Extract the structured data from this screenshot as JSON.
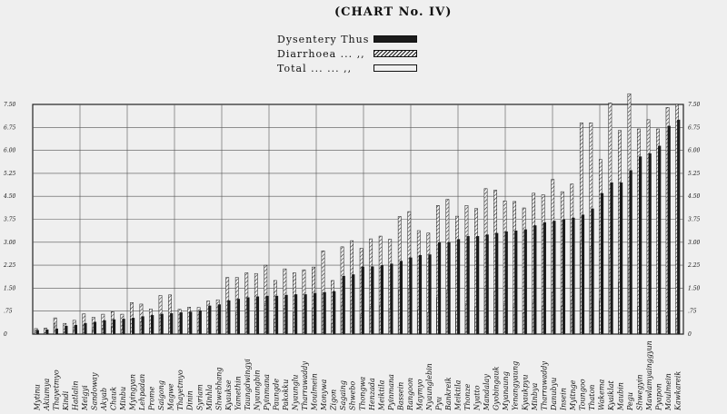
{
  "chart_data": {
    "type": "bar",
    "title": "CHART No. IV",
    "legend": [
      {
        "label": "Dysentery",
        "ditto": "Thus",
        "style": "solid",
        "color": "#1b1b1b"
      },
      {
        "label": "Diarrhoea ...",
        "ditto": ",,",
        "style": "hatched",
        "color": "#1b1b1b"
      },
      {
        "label": "Total ...",
        "ditto": "... ,,",
        "style": "hatched-solid",
        "color": "#1b1b1b"
      }
    ],
    "yticks_left": [
      "7.50",
      "6.75",
      "6.00",
      "5.25",
      "4.50",
      "3.75",
      "3.00",
      "2.25",
      "1.50",
      ".75",
      "0"
    ],
    "yticks_right": [
      "7.50",
      "6.75",
      "6.00",
      "5.25",
      "4.50",
      "3.75",
      "3.00",
      "2.25",
      "1.50",
      ".75",
      "0"
    ],
    "ylim": [
      0,
      7.5
    ],
    "grid": true,
    "categories": [
      "Mytinu",
      "Akiumya",
      "Thayetmyo",
      "Kindi",
      "Hatlalin",
      "Meigyi",
      "Sandoway",
      "Akyab",
      "Chauk",
      "Minbu",
      "Myingyan",
      "Lehpadan",
      "Prome",
      "Saigong",
      "Magwe",
      "Thayetmyo",
      "Dinin",
      "Syriam",
      "Minhla",
      "Shwebhang",
      "Kyaukse",
      "Yamethin",
      "Taungdwingyi",
      "Nyaungbin",
      "Pyinmana",
      "Paungde",
      "Pakokku",
      "Nyaunglu",
      "Tharrawaddy",
      "Moulmein",
      "Monywa",
      "Zigon",
      "Sagaing",
      "Shwebo",
      "Thongwa",
      "Henzada",
      "Meiktila",
      "Pyinmana",
      "Bassein",
      "Rangoon",
      "Maymyo",
      "Nyaunglebin",
      "Pyu",
      "Bankreik",
      "Meiktila",
      "Thonze",
      "Nyatto",
      "Mandalay",
      "Gyobingauk",
      "Myanaung",
      "Yenangyaung",
      "Kyaukpyu",
      "Minbya",
      "Tharrawaddy",
      "Danubyu",
      "Insein",
      "Myitnge",
      "Toungoo",
      "Thaton",
      "Wakema",
      "Kyaiklat",
      "Maubin",
      "Pegu",
      "Shwegyin",
      "Mawlamyainggyun",
      "Pyapon",
      "Moulmein",
      "Kawkareik"
    ],
    "series": [
      {
        "name": "Dysentery",
        "values": [
          0.13,
          0.15,
          0.18,
          0.27,
          0.3,
          0.36,
          0.4,
          0.45,
          0.48,
          0.5,
          0.53,
          0.58,
          0.62,
          0.66,
          0.68,
          0.71,
          0.73,
          0.77,
          0.93,
          0.97,
          1.1,
          1.15,
          1.2,
          1.23,
          1.25,
          1.25,
          1.28,
          1.3,
          1.3,
          1.34,
          1.37,
          1.4,
          1.9,
          1.95,
          2.2,
          2.21,
          2.25,
          2.3,
          2.39,
          2.5,
          2.58,
          2.6,
          3.0,
          3.0,
          3.1,
          3.2,
          3.2,
          3.25,
          3.3,
          3.35,
          3.38,
          3.42,
          3.55,
          3.65,
          3.7,
          3.75,
          3.8,
          3.9,
          4.1,
          4.6,
          4.95,
          4.95,
          5.35,
          5.8,
          5.9,
          6.15,
          6.8,
          7.0
        ]
      },
      {
        "name": "Diarrhoea",
        "values": [
          0.05,
          0.05,
          0.35,
          0.08,
          0.15,
          0.3,
          0.15,
          0.2,
          0.25,
          0.15,
          0.5,
          0.4,
          0.2,
          0.6,
          0.6,
          0.1,
          0.15,
          0.1,
          0.15,
          0.15,
          0.75,
          0.7,
          0.8,
          0.75,
          1.0,
          0.5,
          0.85,
          0.7,
          0.8,
          0.85,
          1.35,
          0.35,
          0.95,
          1.1,
          0.6,
          0.9,
          0.95,
          0.8,
          1.45,
          1.5,
          0.8,
          0.7,
          1.2,
          1.4,
          0.75,
          1.0,
          0.9,
          1.5,
          1.4,
          1.0,
          0.95,
          0.7,
          1.05,
          0.9,
          1.35,
          0.9,
          1.1,
          3.0,
          2.8,
          1.1,
          2.6,
          1.7,
          2.5,
          0.9,
          1.1,
          0.55,
          0.6,
          0.5
        ]
      },
      {
        "name": "Total",
        "values": [
          0.18,
          0.2,
          0.53,
          0.35,
          0.45,
          0.66,
          0.55,
          0.65,
          0.73,
          0.65,
          1.03,
          0.98,
          0.82,
          1.26,
          1.28,
          0.81,
          0.88,
          0.87,
          1.08,
          1.12,
          1.85,
          1.85,
          2.0,
          1.98,
          2.25,
          1.75,
          2.13,
          2.0,
          2.1,
          2.19,
          2.72,
          1.75,
          2.85,
          3.05,
          2.8,
          3.11,
          3.2,
          3.1,
          3.84,
          4.0,
          3.38,
          3.3,
          4.2,
          4.4,
          3.85,
          4.2,
          4.1,
          4.75,
          4.7,
          4.35,
          4.33,
          4.12,
          4.6,
          4.55,
          5.05,
          4.65,
          4.9,
          6.9,
          6.9,
          5.7,
          7.55,
          6.65,
          7.85,
          6.7,
          7.0,
          6.7,
          7.4,
          7.5
        ]
      }
    ]
  }
}
